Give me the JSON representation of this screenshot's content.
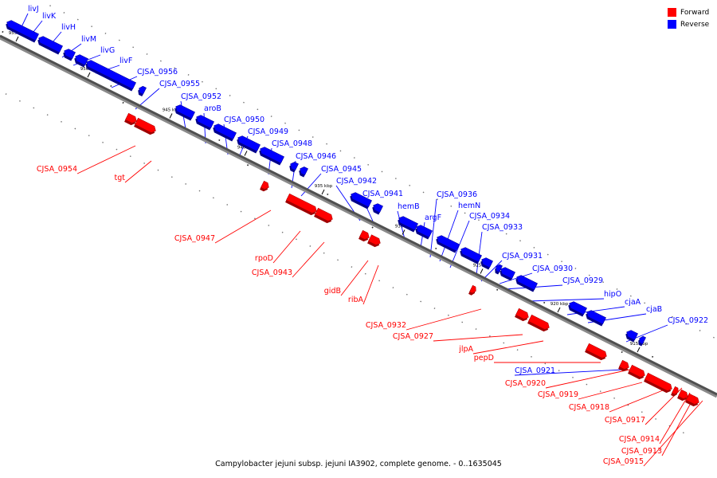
{
  "caption": "Campylobacter jejuni subsp. jejuni IA3902, complete genome. - 0..1635045",
  "legend": {
    "forward_label": "Forward",
    "reverse_label": "Reverse",
    "forward_color": "#ff0000",
    "reverse_color": "#0000ff"
  },
  "ticks": [
    "955 kbp",
    "950 kbp",
    "945 kbp",
    "940 kbp",
    "935 kbp",
    "930 kbp",
    "925 kbp",
    "920 kbp",
    "915 kbp"
  ],
  "genes": {
    "reverse": [
      "livJ",
      "livK",
      "livH",
      "livM",
      "livG",
      "livF",
      "CJSA_0956",
      "CJSA_0955",
      "CJSA_0952",
      "aroB",
      "CJSA_0950",
      "CJSA_0949",
      "CJSA_0948",
      "CJSA_0946",
      "CJSA_0945",
      "CJSA_0942",
      "CJSA_0941",
      "hemB",
      "argF",
      "CJSA_0936",
      "hemN",
      "CJSA_0934",
      "CJSA_0933",
      "CJSA_0931",
      "CJSA_0930",
      "CJSA_0929",
      "hipO",
      "cjaA",
      "cjaB",
      "CJSA_0922",
      "CJSA_0921"
    ],
    "forward": [
      "CJSA_0954",
      "tgt",
      "CJSA_0947",
      "rpoD",
      "CJSA_0943",
      "gidB",
      "ribA",
      "CJSA_0932",
      "CJSA_0927",
      "jlpA",
      "pepD",
      "CJSA_0920",
      "CJSA_0919",
      "CJSA_0918",
      "CJSA_0917",
      "CJSA_0914",
      "CJSA_0913",
      "CJSA_0915"
    ]
  }
}
